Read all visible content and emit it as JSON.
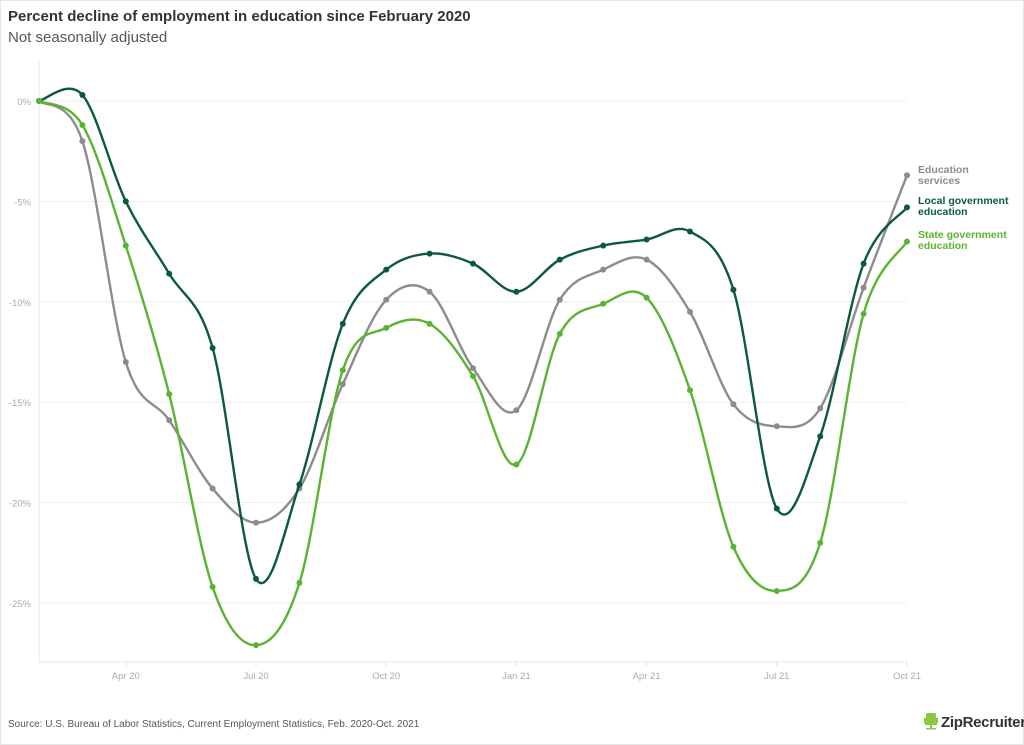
{
  "header": {
    "title": "Percent decline of employment in education since February 2020",
    "subtitle": "Not seasonally adjusted"
  },
  "footer": {
    "source": "Source: U.S. Bureau of Labor Statistics, Current Employment Statistics, Feb. 2020-Oct. 2021",
    "logo_text": "ZipRecruiter"
  },
  "colors": {
    "education_services": "#8c8c8c",
    "local_government": "#0b5a3a",
    "state_government": "#5bb431",
    "grid": "#eeeeee",
    "axis_text": "#aaaaaa"
  },
  "legend": [
    {
      "line1": "Education",
      "line2": "services",
      "color": "#8c8c8c"
    },
    {
      "line1": "Local government",
      "line2": "education",
      "color": "#0b5a3a"
    },
    {
      "line1": "State government",
      "line2": "education",
      "color": "#5bb431"
    }
  ],
  "chart_data": {
    "type": "line",
    "title": "Percent decline of employment in education since February 2020",
    "subtitle": "Not seasonally adjusted",
    "xlabel": "",
    "ylabel": "",
    "x": [
      "Feb 20",
      "Mar 20",
      "Apr 20",
      "May 20",
      "Jun 20",
      "Jul 20",
      "Aug 20",
      "Sep 20",
      "Oct 20",
      "Nov 20",
      "Dec 20",
      "Jan 21",
      "Feb 21",
      "Mar 21",
      "Apr 21",
      "May 21",
      "Jun 21",
      "Jul 21",
      "Aug 21",
      "Sep 21",
      "Oct 21"
    ],
    "x_tick_labels": [
      "Apr 20",
      "Jul 20",
      "Oct 20",
      "Jan 21",
      "Apr 21",
      "Jul 21",
      "Oct 21"
    ],
    "x_tick_indices": [
      2,
      5,
      8,
      11,
      14,
      17,
      20
    ],
    "y_tick_labels": [
      "0%",
      "-5%",
      "-10%",
      "-15%",
      "-20%",
      "-25%"
    ],
    "y_ticks": [
      0,
      -5,
      -10,
      -15,
      -20,
      -25
    ],
    "ylim": [
      -28,
      2
    ],
    "grid": true,
    "legend_position": "right, inline at line ends",
    "series": [
      {
        "name": "Education services",
        "color": "#8c8c8c",
        "values": [
          0,
          -2.0,
          -13.0,
          -15.9,
          -19.3,
          -21.0,
          -19.3,
          -14.1,
          -9.9,
          -9.5,
          -13.3,
          -15.4,
          -9.9,
          -8.4,
          -7.9,
          -10.5,
          -15.1,
          -16.2,
          -15.3,
          -9.3,
          -3.7
        ]
      },
      {
        "name": "Local government education",
        "color": "#0b5a3a",
        "values": [
          0,
          0.3,
          -5.0,
          -8.6,
          -12.3,
          -23.8,
          -19.1,
          -11.1,
          -8.4,
          -7.6,
          -8.1,
          -9.5,
          -7.9,
          -7.2,
          -6.9,
          -6.5,
          -9.4,
          -20.3,
          -16.7,
          -8.1,
          -5.3
        ]
      },
      {
        "name": "State government education",
        "color": "#5bb431",
        "values": [
          0,
          -1.2,
          -7.2,
          -14.6,
          -24.2,
          -27.1,
          -24.0,
          -13.4,
          -11.3,
          -11.1,
          -13.7,
          -18.1,
          -11.6,
          -10.1,
          -9.8,
          -14.4,
          -22.2,
          -24.4,
          -22.0,
          -10.6,
          -7.0
        ]
      }
    ]
  }
}
